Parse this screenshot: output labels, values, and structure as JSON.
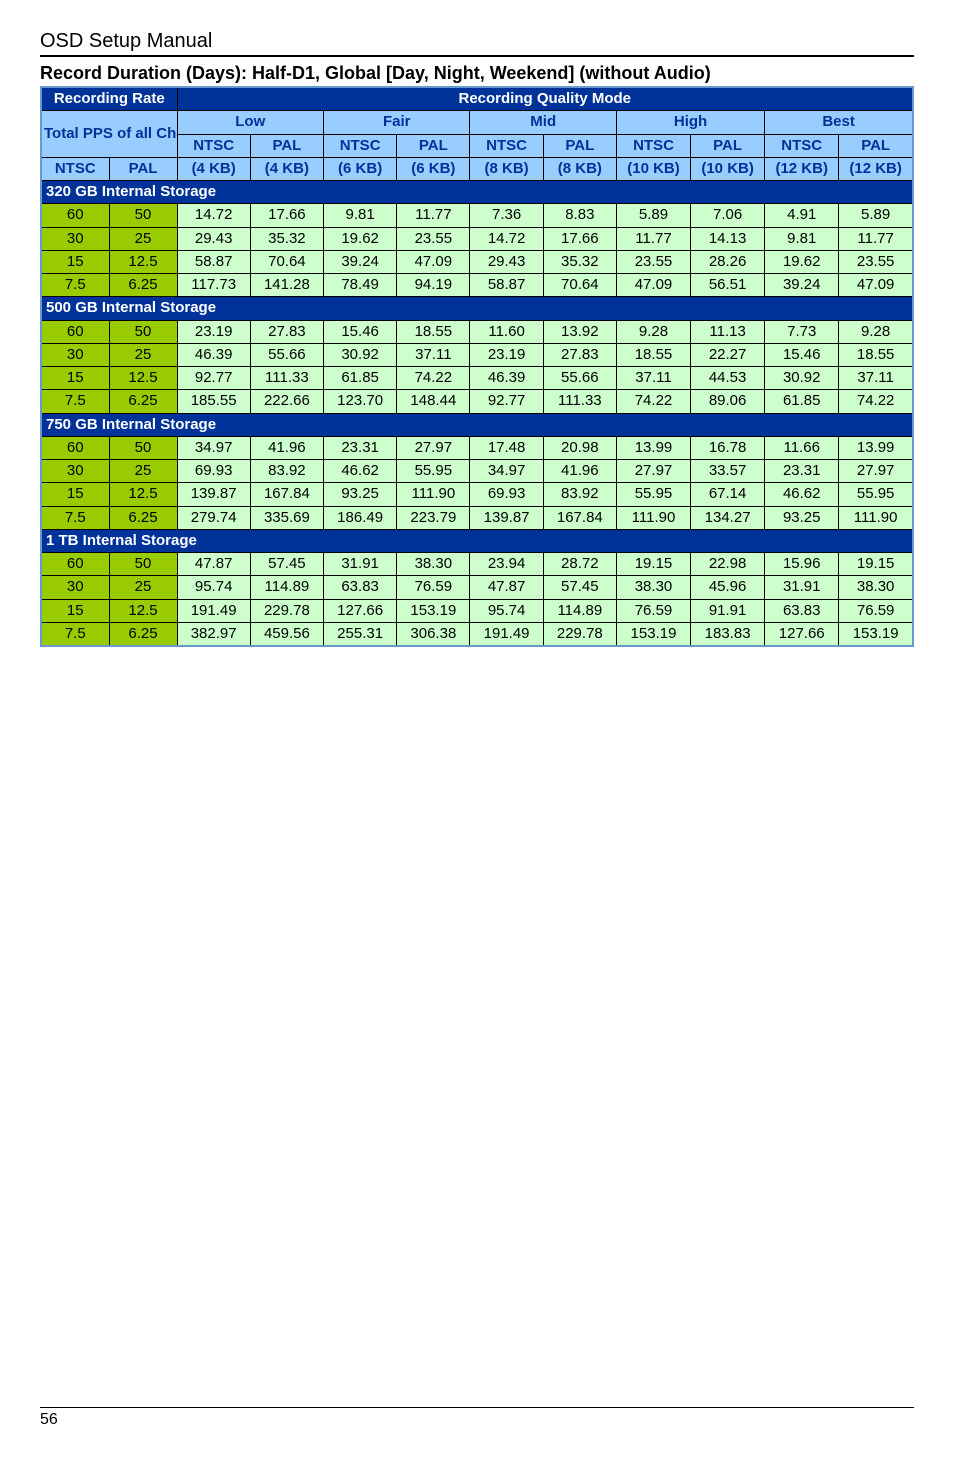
{
  "doc_title": "OSD Setup Manual",
  "section_heading": "Record Duration (Days): Half-D1, Global [Day, Night, Weekend] (without Audio)",
  "page_number": "56",
  "headers": {
    "recording_rate": "Recording Rate",
    "recording_quality_mode": "Recording Quality Mode",
    "total_pps": "Total PPS of all Channels",
    "quality_groups": [
      "Low",
      "Fair",
      "Mid",
      "High",
      "Best"
    ],
    "col_ntsc": "NTSC",
    "col_pal": "PAL",
    "kb_row": [
      "(4 KB)",
      "(4 KB)",
      "(6 KB)",
      "(6 KB)",
      "(8 KB)",
      "(8 KB)",
      "(10 KB)",
      "(10 KB)",
      "(12 KB)",
      "(12 KB)"
    ]
  },
  "storage_sections": [
    {
      "label": "320 GB Internal Storage",
      "rows": [
        {
          "ntsc": "60",
          "pal": "50",
          "vals": [
            "14.72",
            "17.66",
            "9.81",
            "11.77",
            "7.36",
            "8.83",
            "5.89",
            "7.06",
            "4.91",
            "5.89"
          ]
        },
        {
          "ntsc": "30",
          "pal": "25",
          "vals": [
            "29.43",
            "35.32",
            "19.62",
            "23.55",
            "14.72",
            "17.66",
            "11.77",
            "14.13",
            "9.81",
            "11.77"
          ]
        },
        {
          "ntsc": "15",
          "pal": "12.5",
          "vals": [
            "58.87",
            "70.64",
            "39.24",
            "47.09",
            "29.43",
            "35.32",
            "23.55",
            "28.26",
            "19.62",
            "23.55"
          ]
        },
        {
          "ntsc": "7.5",
          "pal": "6.25",
          "vals": [
            "117.73",
            "141.28",
            "78.49",
            "94.19",
            "58.87",
            "70.64",
            "47.09",
            "56.51",
            "39.24",
            "47.09"
          ]
        }
      ]
    },
    {
      "label": "500 GB Internal Storage",
      "rows": [
        {
          "ntsc": "60",
          "pal": "50",
          "vals": [
            "23.19",
            "27.83",
            "15.46",
            "18.55",
            "11.60",
            "13.92",
            "9.28",
            "11.13",
            "7.73",
            "9.28"
          ]
        },
        {
          "ntsc": "30",
          "pal": "25",
          "vals": [
            "46.39",
            "55.66",
            "30.92",
            "37.11",
            "23.19",
            "27.83",
            "18.55",
            "22.27",
            "15.46",
            "18.55"
          ]
        },
        {
          "ntsc": "15",
          "pal": "12.5",
          "vals": [
            "92.77",
            "111.33",
            "61.85",
            "74.22",
            "46.39",
            "55.66",
            "37.11",
            "44.53",
            "30.92",
            "37.11"
          ]
        },
        {
          "ntsc": "7.5",
          "pal": "6.25",
          "vals": [
            "185.55",
            "222.66",
            "123.70",
            "148.44",
            "92.77",
            "111.33",
            "74.22",
            "89.06",
            "61.85",
            "74.22"
          ]
        }
      ]
    },
    {
      "label": "750 GB Internal Storage",
      "rows": [
        {
          "ntsc": "60",
          "pal": "50",
          "vals": [
            "34.97",
            "41.96",
            "23.31",
            "27.97",
            "17.48",
            "20.98",
            "13.99",
            "16.78",
            "11.66",
            "13.99"
          ]
        },
        {
          "ntsc": "30",
          "pal": "25",
          "vals": [
            "69.93",
            "83.92",
            "46.62",
            "55.95",
            "34.97",
            "41.96",
            "27.97",
            "33.57",
            "23.31",
            "27.97"
          ]
        },
        {
          "ntsc": "15",
          "pal": "12.5",
          "vals": [
            "139.87",
            "167.84",
            "93.25",
            "111.90",
            "69.93",
            "83.92",
            "55.95",
            "67.14",
            "46.62",
            "55.95"
          ]
        },
        {
          "ntsc": "7.5",
          "pal": "6.25",
          "vals": [
            "279.74",
            "335.69",
            "186.49",
            "223.79",
            "139.87",
            "167.84",
            "111.90",
            "134.27",
            "93.25",
            "111.90"
          ]
        }
      ]
    },
    {
      "label": "1 TB Internal Storage",
      "rows": [
        {
          "ntsc": "60",
          "pal": "50",
          "vals": [
            "47.87",
            "57.45",
            "31.91",
            "38.30",
            "23.94",
            "28.72",
            "19.15",
            "22.98",
            "15.96",
            "19.15"
          ]
        },
        {
          "ntsc": "30",
          "pal": "25",
          "vals": [
            "95.74",
            "114.89",
            "63.83",
            "76.59",
            "47.87",
            "57.45",
            "38.30",
            "45.96",
            "31.91",
            "38.30"
          ]
        },
        {
          "ntsc": "15",
          "pal": "12.5",
          "vals": [
            "191.49",
            "229.78",
            "127.66",
            "153.19",
            "95.74",
            "114.89",
            "76.59",
            "91.91",
            "63.83",
            "76.59"
          ]
        },
        {
          "ntsc": "7.5",
          "pal": "6.25",
          "vals": [
            "382.97",
            "459.56",
            "255.31",
            "306.38",
            "191.49",
            "229.78",
            "153.19",
            "183.83",
            "127.66",
            "153.19"
          ]
        }
      ]
    }
  ]
}
